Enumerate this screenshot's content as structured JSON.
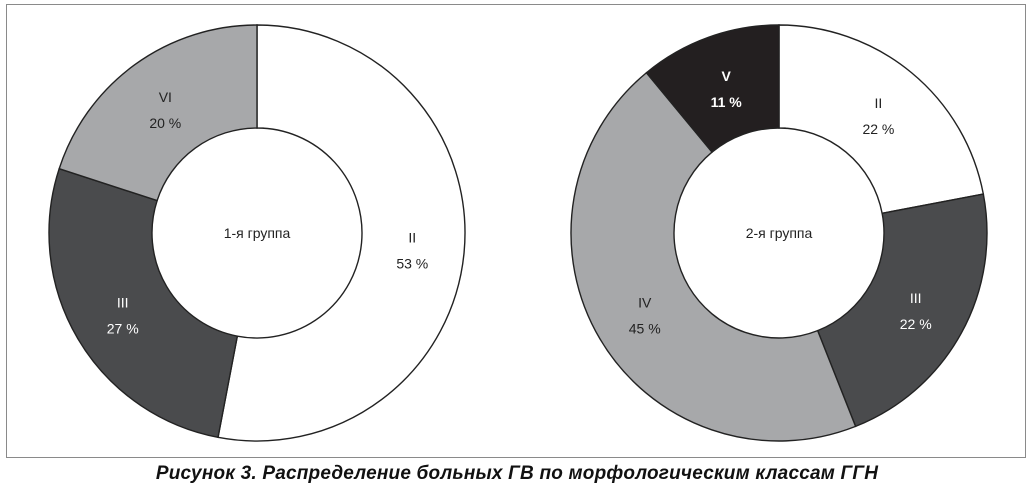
{
  "caption": "Рисунок 3. Распределение больных ГВ по морфологическим классам ГГН",
  "chart_data": [
    {
      "type": "pie",
      "center_label": "1-я группа",
      "slices": [
        {
          "label": "II",
          "value": 53,
          "value_text": "53 %",
          "color": "#ffffff",
          "text_color": "#222222"
        },
        {
          "label": "III",
          "value": 27,
          "value_text": "27 %",
          "color": "#4a4b4d",
          "text_color": "#ffffff"
        },
        {
          "label": "VI",
          "value": 20,
          "value_text": "20 %",
          "color": "#a7a8aa",
          "text_color": "#222222"
        }
      ]
    },
    {
      "type": "pie",
      "center_label": "2-я группа",
      "slices": [
        {
          "label": "II",
          "value": 22,
          "value_text": "22 %",
          "color": "#ffffff",
          "text_color": "#222222"
        },
        {
          "label": "III",
          "value": 22,
          "value_text": "22 %",
          "color": "#4a4b4d",
          "text_color": "#ffffff"
        },
        {
          "label": "IV",
          "value": 45,
          "value_text": "45 %",
          "color": "#a7a8aa",
          "text_color": "#222222"
        },
        {
          "label": "V",
          "value": 11,
          "value_text": "11 %",
          "color": "#231f20",
          "text_color": "#ffffff"
        }
      ]
    }
  ]
}
